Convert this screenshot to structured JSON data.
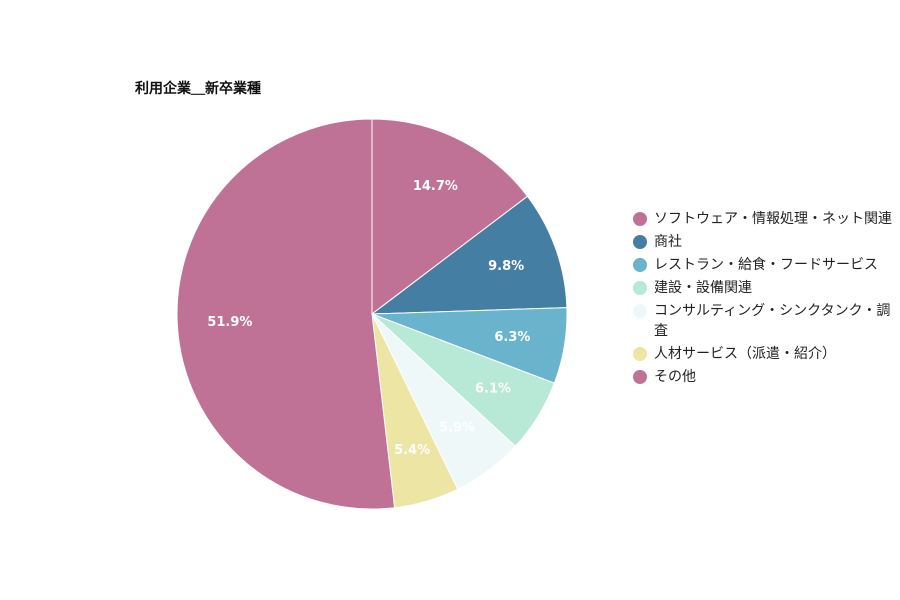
{
  "chart_data": {
    "type": "pie",
    "title": "利用企業＿新卒業種",
    "start_angle_deg": 0,
    "direction": "clockwise",
    "slices": [
      {
        "label": "ソフトウェア・情報処理・ネット関連",
        "value": 14.7,
        "display": "14.7%",
        "color": "#bf7295",
        "label_color": "#ffffff"
      },
      {
        "label": "商社",
        "value": 9.8,
        "display": "9.8%",
        "color": "#447ea3",
        "label_color": "#ffffff"
      },
      {
        "label": "レストラン・給食・フードサービス",
        "value": 6.3,
        "display": "6.3%",
        "color": "#69b4cc",
        "label_color": "#ffffff"
      },
      {
        "label": "建設・設備関連",
        "value": 6.1,
        "display": "6.1%",
        "color": "#b8e8d6",
        "label_color": "#ffffff"
      },
      {
        "label": "コンサルティング・シンクタンク・調査",
        "value": 5.9,
        "display": "5.9%",
        "color": "#eef8f8",
        "label_color": "#ffffff"
      },
      {
        "label": "人材サービス（派遣・紹介）",
        "value": 5.4,
        "display": "5.4%",
        "color": "#ede5a4",
        "label_color": "#ffffff"
      },
      {
        "label": "その他",
        "value": 51.9,
        "display": "51.9%",
        "color": "#bf7295",
        "label_color": "#ffffff"
      }
    ],
    "legend_position": "right"
  }
}
